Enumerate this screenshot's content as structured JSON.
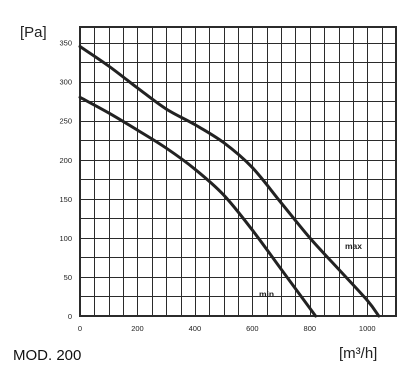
{
  "chart_data": {
    "type": "line",
    "ylabel": "[Pa]",
    "xlabel": "[m³/h]",
    "model_label": "MOD. 200",
    "xlim": [
      0,
      1100
    ],
    "ylim": [
      0,
      370
    ],
    "grid": true,
    "x_ticks": [
      0,
      200,
      400,
      600,
      800,
      1000
    ],
    "y_ticks": [
      0,
      50,
      100,
      150,
      200,
      250,
      300,
      350
    ],
    "series": [
      {
        "name": "max",
        "points": [
          [
            0,
            345
          ],
          [
            100,
            320
          ],
          [
            200,
            292
          ],
          [
            300,
            265
          ],
          [
            400,
            245
          ],
          [
            500,
            222
          ],
          [
            600,
            190
          ],
          [
            700,
            145
          ],
          [
            800,
            100
          ],
          [
            900,
            60
          ],
          [
            1000,
            20
          ],
          [
            1040,
            0
          ]
        ]
      },
      {
        "name": "min",
        "points": [
          [
            0,
            280
          ],
          [
            100,
            260
          ],
          [
            200,
            238
          ],
          [
            300,
            215
          ],
          [
            400,
            188
          ],
          [
            500,
            155
          ],
          [
            600,
            110
          ],
          [
            700,
            60
          ],
          [
            780,
            20
          ],
          [
            820,
            0
          ]
        ]
      }
    ]
  }
}
